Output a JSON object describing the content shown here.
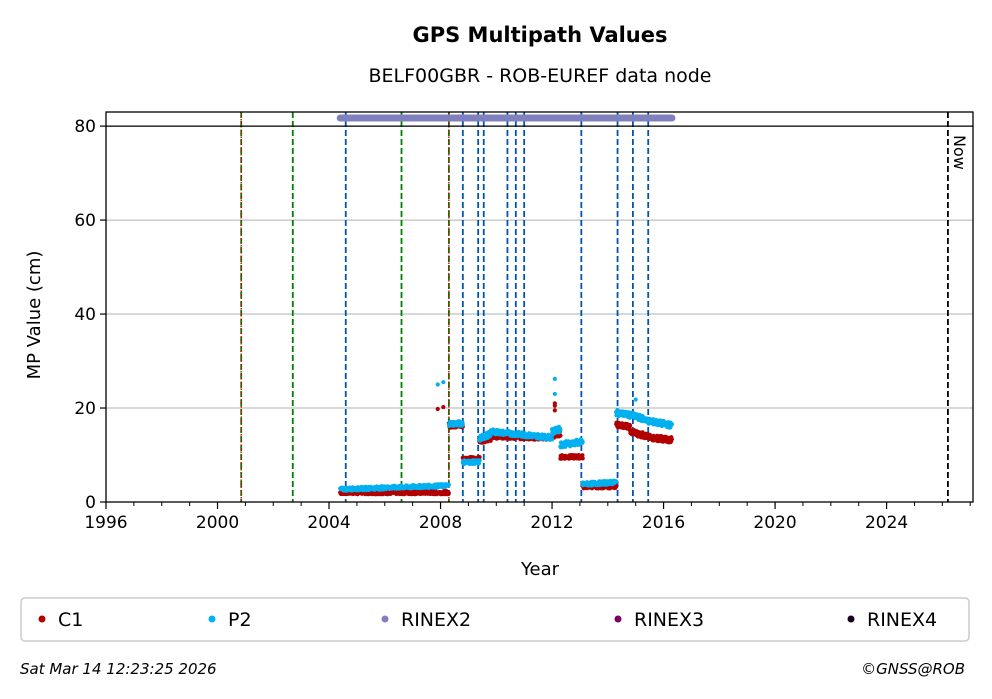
{
  "chart_data": {
    "type": "scatter",
    "title": "GPS Multipath Values",
    "subtitle": "BELF00GBR - ROB-EUREF data node",
    "xlabel": "Year",
    "ylabel": "MP Value (cm)",
    "xlim": [
      1996.0,
      2027.1
    ],
    "ylim": [
      0,
      83
    ],
    "xticks": [
      1996,
      2000,
      2004,
      2008,
      2012,
      2016,
      2020,
      2024
    ],
    "yticks": [
      0,
      20,
      40,
      60,
      80
    ],
    "grid": "horizontal",
    "legend_position": "bottom",
    "legend": [
      {
        "name": "C1",
        "color": "#b20000"
      },
      {
        "name": "P2",
        "color": "#00b0f0"
      },
      {
        "name": "RINEX2",
        "color": "#8080bf"
      },
      {
        "name": "RINEX3",
        "color": "#7b0063"
      },
      {
        "name": "RINEX4",
        "color": "#1a0020"
      }
    ],
    "series": [
      {
        "name": "C1",
        "color": "#b20000",
        "segments": [
          {
            "x0": 2004.4,
            "x1": 2008.3,
            "y0": 2.0,
            "y1": 2.0,
            "jitter": 0.35
          },
          {
            "x0": 2008.3,
            "x1": 2008.8,
            "y0": 16.3,
            "y1": 16.3,
            "jitter": 0.5
          },
          {
            "x0": 2008.8,
            "x1": 2009.4,
            "y0": 9.2,
            "y1": 9.2,
            "jitter": 0.4
          },
          {
            "x0": 2009.4,
            "x1": 2009.8,
            "y0": 13.0,
            "y1": 13.5,
            "jitter": 0.5
          },
          {
            "x0": 2009.8,
            "x1": 2012.0,
            "y0": 13.9,
            "y1": 13.6,
            "jitter": 0.4
          },
          {
            "x0": 2012.0,
            "x1": 2012.3,
            "y0": 14.0,
            "y1": 14.5,
            "jitter": 0.5
          },
          {
            "x0": 2012.3,
            "x1": 2013.1,
            "y0": 9.6,
            "y1": 9.6,
            "jitter": 0.4
          },
          {
            "x0": 2013.1,
            "x1": 2014.3,
            "y0": 3.3,
            "y1": 3.3,
            "jitter": 0.4
          },
          {
            "x0": 2014.3,
            "x1": 2014.8,
            "y0": 16.5,
            "y1": 16.0,
            "jitter": 0.5
          },
          {
            "x0": 2014.8,
            "x1": 2015.4,
            "y0": 15.0,
            "y1": 14.0,
            "jitter": 0.6
          },
          {
            "x0": 2015.4,
            "x1": 2016.3,
            "y0": 13.8,
            "y1": 13.2,
            "jitter": 0.6
          }
        ],
        "outliers": [
          [
            2007.9,
            19.8
          ],
          [
            2008.1,
            20.2
          ],
          [
            2012.1,
            19.5
          ],
          [
            2012.1,
            20.5
          ],
          [
            2012.1,
            21.0
          ]
        ]
      },
      {
        "name": "P2",
        "color": "#00b0f0",
        "segments": [
          {
            "x0": 2004.4,
            "x1": 2008.3,
            "y0": 2.7,
            "y1": 3.5,
            "jitter": 0.35
          },
          {
            "x0": 2008.3,
            "x1": 2008.8,
            "y0": 16.7,
            "y1": 16.7,
            "jitter": 0.5
          },
          {
            "x0": 2008.8,
            "x1": 2009.4,
            "y0": 8.5,
            "y1": 8.5,
            "jitter": 0.4
          },
          {
            "x0": 2009.4,
            "x1": 2009.8,
            "y0": 13.5,
            "y1": 14.5,
            "jitter": 0.6
          },
          {
            "x0": 2009.8,
            "x1": 2012.0,
            "y0": 15.0,
            "y1": 13.7,
            "jitter": 0.5
          },
          {
            "x0": 2012.0,
            "x1": 2012.3,
            "y0": 15.0,
            "y1": 15.5,
            "jitter": 0.6
          },
          {
            "x0": 2012.3,
            "x1": 2013.1,
            "y0": 12.2,
            "y1": 12.8,
            "jitter": 0.6
          },
          {
            "x0": 2013.1,
            "x1": 2014.3,
            "y0": 3.8,
            "y1": 4.2,
            "jitter": 0.4
          },
          {
            "x0": 2014.3,
            "x1": 2014.8,
            "y0": 19.0,
            "y1": 18.5,
            "jitter": 0.6
          },
          {
            "x0": 2014.8,
            "x1": 2015.4,
            "y0": 18.5,
            "y1": 17.5,
            "jitter": 0.6
          },
          {
            "x0": 2015.4,
            "x1": 2016.3,
            "y0": 17.3,
            "y1": 16.3,
            "jitter": 0.6
          }
        ],
        "outliers": [
          [
            2007.9,
            25.0
          ],
          [
            2008.1,
            25.5
          ],
          [
            2012.1,
            26.2
          ],
          [
            2012.1,
            23.0
          ],
          [
            2015.0,
            21.8
          ]
        ]
      }
    ],
    "rinex2_span": [
      2004.4,
      2016.3
    ],
    "vertical_lines": {
      "green_dashed": [
        2000.85,
        2002.7,
        2006.6,
        2008.3
      ],
      "red_dotted": [
        2000.85,
        2008.3
      ],
      "blue_dashed": [
        2004.6,
        2008.8,
        2009.35,
        2009.55,
        2010.4,
        2010.7,
        2011.0,
        2013.05,
        2014.35,
        2014.9,
        2015.45
      ],
      "now": 2026.2
    },
    "now_label": "Now",
    "footer_left": "Sat Mar 14 12:23:25 2026",
    "footer_right": "©GNSS@ROB"
  }
}
